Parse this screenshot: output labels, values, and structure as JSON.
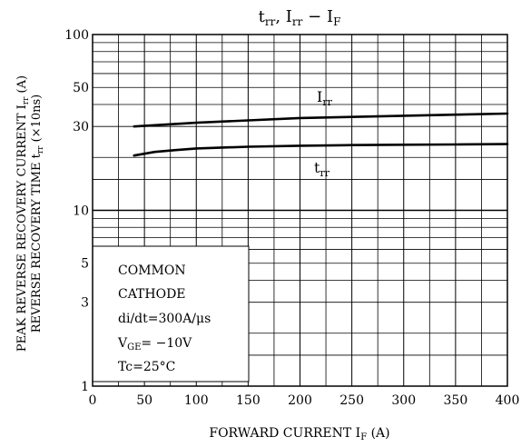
{
  "chart_data": {
    "type": "line",
    "title": "t_rr, I_rr − I_F",
    "title_parts": {
      "t": "t",
      "t_sub": "rr",
      "i": "I",
      "i_sub": "rr",
      "dash": "−",
      "f": "I",
      "f_sub": "F"
    },
    "xlabel": "FORWARD CURRENT",
    "xlabel_symbol": "I",
    "xlabel_symbol_sub": "F",
    "xlabel_unit": "(A)",
    "ylabel_top": "PEAK REVERSE RECOVERY CURRENT",
    "ylabel_top_symbol": "I",
    "ylabel_top_symbol_sub": "rr",
    "ylabel_top_unit": "(A)",
    "ylabel_bottom": "REVERSE RECOVERY TIME",
    "ylabel_bottom_symbol": "t",
    "ylabel_bottom_symbol_sub": "rr",
    "ylabel_bottom_unit": "(×10ns)",
    "x_scale": "linear",
    "y_scale": "log",
    "xlim": [
      0,
      400
    ],
    "ylim": [
      1,
      100
    ],
    "x_ticks": [
      0,
      50,
      100,
      150,
      200,
      250,
      300,
      350,
      400
    ],
    "y_tick_labels": [
      {
        "value": 1,
        "label": "1"
      },
      {
        "value": 3,
        "label": "3"
      },
      {
        "value": 5,
        "label": "5"
      },
      {
        "value": 10,
        "label": "10"
      },
      {
        "value": 30,
        "label": "30"
      },
      {
        "value": 50,
        "label": "50"
      },
      {
        "value": 100,
        "label": "100"
      }
    ],
    "grid": true,
    "series": [
      {
        "name": "I_rr",
        "label_main": "I",
        "label_sub": "rr",
        "x": [
          40,
          100,
          150,
          200,
          250,
          300,
          350,
          400
        ],
        "y": [
          30,
          31.5,
          32.5,
          33.5,
          34,
          34.5,
          35,
          35.5
        ]
      },
      {
        "name": "t_rr",
        "label_main": "t",
        "label_sub": "rr",
        "x": [
          40,
          60,
          80,
          100,
          150,
          200,
          250,
          300,
          350,
          400
        ],
        "y": [
          20.5,
          21.5,
          22,
          22.5,
          23,
          23.3,
          23.5,
          23.6,
          23.7,
          23.8
        ]
      }
    ],
    "conditions": [
      "COMMON",
      "CATHODE",
      "di/dt=300A/μs",
      "V_GE=−10V",
      "Tc=25°C"
    ],
    "conditions_vge": {
      "main": "V",
      "sub": "GE",
      "rest": "= −10V"
    }
  }
}
